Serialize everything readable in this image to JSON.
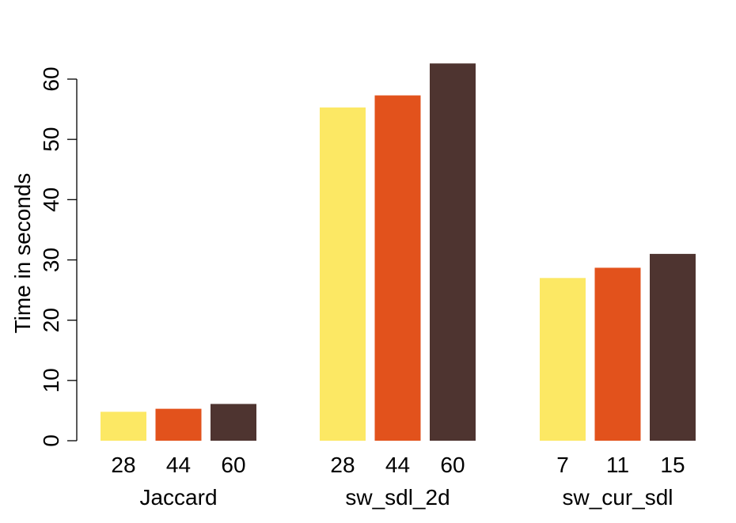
{
  "chart_data": {
    "type": "bar",
    "ylabel": "Time in seconds",
    "ylim": [
      0,
      60
    ],
    "yticks": [
      0,
      10,
      20,
      30,
      40,
      50,
      60
    ],
    "grid": false,
    "colors": [
      "#FCE864",
      "#E2521C",
      "#4E3430"
    ],
    "groups": [
      {
        "name": "Jaccard",
        "categories": [
          "28",
          "44",
          "60"
        ],
        "values": [
          4.8,
          5.3,
          6.1
        ]
      },
      {
        "name": "sw_sdl_2d",
        "categories": [
          "28",
          "44",
          "60"
        ],
        "values": [
          55.3,
          57.3,
          62.6
        ]
      },
      {
        "name": "sw_cur_sdl",
        "categories": [
          "7",
          "11",
          "15"
        ],
        "values": [
          27.0,
          28.7,
          31.0
        ]
      }
    ]
  }
}
